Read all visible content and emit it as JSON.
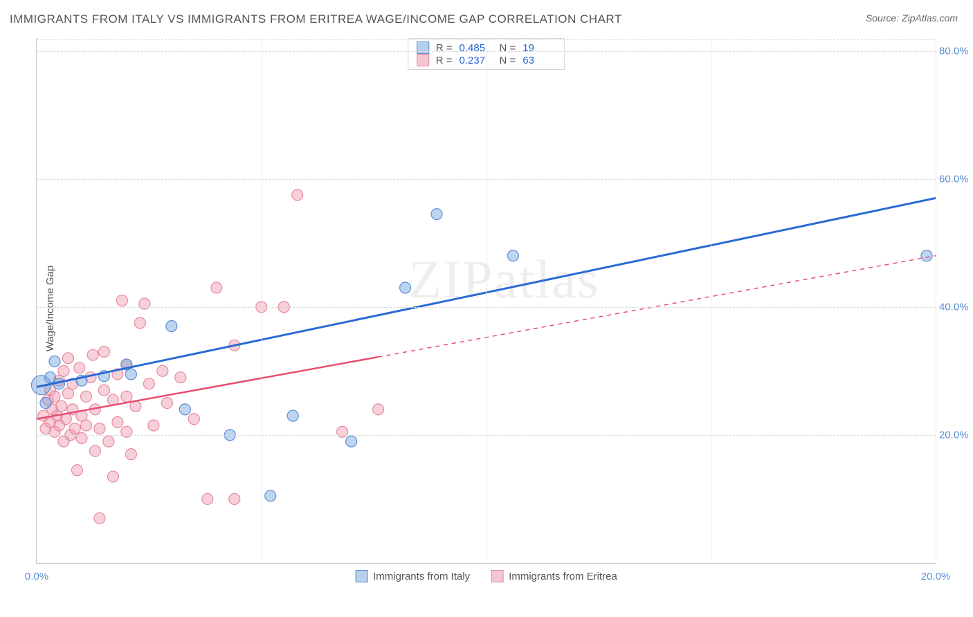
{
  "title": "IMMIGRANTS FROM ITALY VS IMMIGRANTS FROM ERITREA WAGE/INCOME GAP CORRELATION CHART",
  "source_label": "Source: ",
  "source_value": "ZipAtlas.com",
  "ylabel": "Wage/Income Gap",
  "watermark": "ZIPatlas",
  "chart": {
    "type": "scatter-with-regression",
    "xlim": [
      0,
      20
    ],
    "ylim": [
      0,
      82
    ],
    "xticks": [
      0,
      20
    ],
    "xtick_labels": [
      "0.0%",
      "20.0%"
    ],
    "yticks": [
      20,
      40,
      60,
      80
    ],
    "ytick_labels": [
      "20.0%",
      "40.0%",
      "60.0%",
      "80.0%"
    ],
    "grid_color": "#d8d8d8",
    "background_color": "#ffffff",
    "axis_color": "#c8c8c8",
    "tick_label_color": "#5a8fd6",
    "marker_radius_base": 8,
    "series": [
      {
        "name": "Immigrants from Italy",
        "color_fill": "rgba(110,160,220,0.45)",
        "color_stroke": "#5a8fd6",
        "swatch_fill": "#b8d0ee",
        "swatch_stroke": "#5a8fd6",
        "R": "0.485",
        "N": "19",
        "regression": {
          "x1": 0,
          "y1": 27.5,
          "x2": 20,
          "y2": 57,
          "stroke": "#2a6bd4",
          "width": 3,
          "dash_after_x": null
        },
        "points": [
          {
            "x": 0.1,
            "y": 27.8,
            "r": 14
          },
          {
            "x": 0.4,
            "y": 31.5
          },
          {
            "x": 0.2,
            "y": 25.0
          },
          {
            "x": 0.5,
            "y": 28.0
          },
          {
            "x": 0.3,
            "y": 29.0
          },
          {
            "x": 1.0,
            "y": 28.5
          },
          {
            "x": 1.5,
            "y": 29.2
          },
          {
            "x": 2.0,
            "y": 31.0
          },
          {
            "x": 2.1,
            "y": 29.5
          },
          {
            "x": 3.0,
            "y": 37.0
          },
          {
            "x": 3.3,
            "y": 24.0
          },
          {
            "x": 4.3,
            "y": 20.0
          },
          {
            "x": 5.2,
            "y": 10.5
          },
          {
            "x": 5.7,
            "y": 23.0
          },
          {
            "x": 7.0,
            "y": 19.0
          },
          {
            "x": 8.2,
            "y": 43.0
          },
          {
            "x": 8.9,
            "y": 54.5
          },
          {
            "x": 10.6,
            "y": 48.0
          },
          {
            "x": 19.8,
            "y": 48.0
          }
        ]
      },
      {
        "name": "Immigrants from Eritrea",
        "color_fill": "rgba(240,150,170,0.45)",
        "color_stroke": "#e68aa0",
        "swatch_fill": "#f5c6d2",
        "swatch_stroke": "#e68aa0",
        "R": "0.237",
        "N": "63",
        "regression": {
          "x1": 0,
          "y1": 22.5,
          "x2": 20,
          "y2": 48,
          "stroke": "#e84c6f",
          "width": 2.5,
          "dash_after_x": 7.6
        },
        "points": [
          {
            "x": 0.15,
            "y": 23.0
          },
          {
            "x": 0.2,
            "y": 21.0
          },
          {
            "x": 0.25,
            "y": 25.5
          },
          {
            "x": 0.3,
            "y": 27.0
          },
          {
            "x": 0.3,
            "y": 22.0
          },
          {
            "x": 0.35,
            "y": 24.0
          },
          {
            "x": 0.4,
            "y": 20.5
          },
          {
            "x": 0.4,
            "y": 26.0
          },
          {
            "x": 0.45,
            "y": 23.0
          },
          {
            "x": 0.5,
            "y": 28.5
          },
          {
            "x": 0.5,
            "y": 21.5
          },
          {
            "x": 0.55,
            "y": 24.5
          },
          {
            "x": 0.6,
            "y": 30.0
          },
          {
            "x": 0.6,
            "y": 19.0
          },
          {
            "x": 0.65,
            "y": 22.5
          },
          {
            "x": 0.7,
            "y": 26.5
          },
          {
            "x": 0.7,
            "y": 32.0
          },
          {
            "x": 0.75,
            "y": 20.0
          },
          {
            "x": 0.8,
            "y": 24.0
          },
          {
            "x": 0.8,
            "y": 28.0
          },
          {
            "x": 0.85,
            "y": 21.0
          },
          {
            "x": 0.9,
            "y": 14.5
          },
          {
            "x": 0.95,
            "y": 30.5
          },
          {
            "x": 1.0,
            "y": 23.0
          },
          {
            "x": 1.0,
            "y": 19.5
          },
          {
            "x": 1.1,
            "y": 26.0
          },
          {
            "x": 1.1,
            "y": 21.5
          },
          {
            "x": 1.2,
            "y": 29.0
          },
          {
            "x": 1.25,
            "y": 32.5
          },
          {
            "x": 1.3,
            "y": 17.5
          },
          {
            "x": 1.3,
            "y": 24.0
          },
          {
            "x": 1.4,
            "y": 7.0
          },
          {
            "x": 1.4,
            "y": 21.0
          },
          {
            "x": 1.5,
            "y": 33.0
          },
          {
            "x": 1.5,
            "y": 27.0
          },
          {
            "x": 1.6,
            "y": 19.0
          },
          {
            "x": 1.7,
            "y": 25.5
          },
          {
            "x": 1.7,
            "y": 13.5
          },
          {
            "x": 1.8,
            "y": 29.5
          },
          {
            "x": 1.8,
            "y": 22.0
          },
          {
            "x": 1.9,
            "y": 41.0
          },
          {
            "x": 2.0,
            "y": 20.5
          },
          {
            "x": 2.0,
            "y": 26.0
          },
          {
            "x": 2.0,
            "y": 31.0
          },
          {
            "x": 2.1,
            "y": 17.0
          },
          {
            "x": 2.2,
            "y": 24.5
          },
          {
            "x": 2.3,
            "y": 37.5
          },
          {
            "x": 2.4,
            "y": 40.5
          },
          {
            "x": 2.5,
            "y": 28.0
          },
          {
            "x": 2.6,
            "y": 21.5
          },
          {
            "x": 2.8,
            "y": 30.0
          },
          {
            "x": 2.9,
            "y": 25.0
          },
          {
            "x": 3.2,
            "y": 29.0
          },
          {
            "x": 3.5,
            "y": 22.5
          },
          {
            "x": 3.8,
            "y": 10.0
          },
          {
            "x": 4.0,
            "y": 43.0
          },
          {
            "x": 4.4,
            "y": 10.0
          },
          {
            "x": 4.4,
            "y": 34.0
          },
          {
            "x": 5.0,
            "y": 40.0
          },
          {
            "x": 5.5,
            "y": 40.0
          },
          {
            "x": 5.8,
            "y": 57.5
          },
          {
            "x": 6.8,
            "y": 20.5
          },
          {
            "x": 7.6,
            "y": 24.0
          }
        ]
      }
    ]
  },
  "stats_legend": {
    "r_label": "R =",
    "n_label": "N ="
  },
  "bottom_legend": {
    "items": [
      "Immigrants from Italy",
      "Immigrants from Eritrea"
    ]
  }
}
